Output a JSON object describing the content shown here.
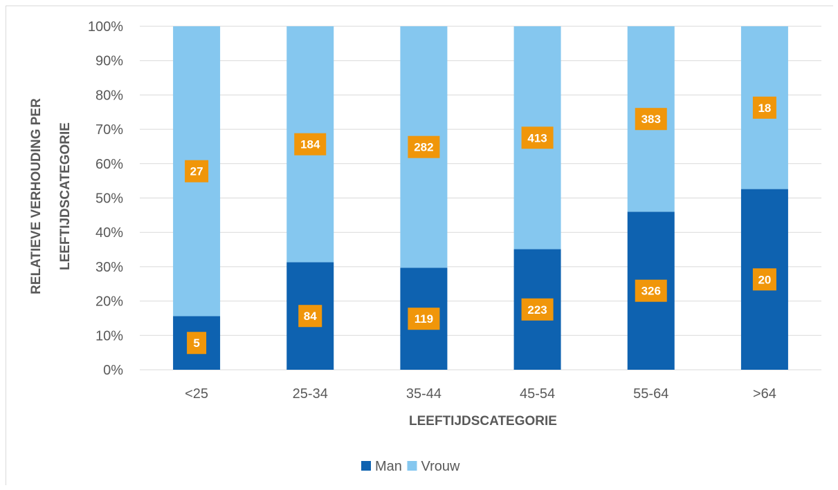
{
  "chart_data": {
    "type": "bar",
    "stacked": "percent",
    "categories": [
      "<25",
      "25-34",
      "35-44",
      "45-54",
      "55-64",
      ">64"
    ],
    "series": [
      {
        "name": "Man",
        "counts": [
          5,
          84,
          119,
          223,
          326,
          20
        ],
        "values_pct": [
          15.6,
          31.3,
          29.7,
          35.1,
          46.0,
          52.6
        ],
        "color": "#0e62b0"
      },
      {
        "name": "Vrouw",
        "counts": [
          27,
          184,
          282,
          413,
          383,
          18
        ],
        "values_pct": [
          84.4,
          68.7,
          70.3,
          64.9,
          54.0,
          47.4
        ],
        "color": "#85c7ef"
      }
    ],
    "xlabel": "LEEFTIJDSCATEGORIE",
    "ylabel_lines": [
      "RELATIEVE VERHOUDING PER",
      "LEEFTIJDSCATEGORIE"
    ],
    "yticks": [
      "0%",
      "10%",
      "20%",
      "30%",
      "40%",
      "50%",
      "60%",
      "70%",
      "80%",
      "90%",
      "100%"
    ],
    "ylim": [
      0,
      100
    ],
    "grid": true,
    "legend_position": "bottom",
    "label_box_color": "#f0960a",
    "gridline_color": "#d9d9d9"
  }
}
